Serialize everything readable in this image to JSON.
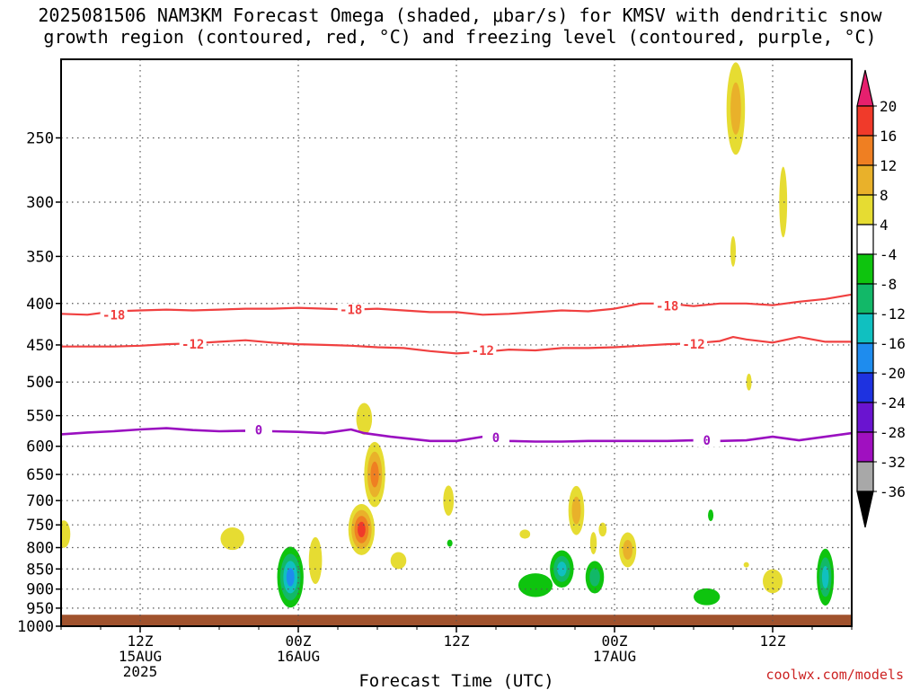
{
  "chart_data": {
    "type": "heatmap",
    "title_line1": "2025081506 NAM3KM Forecast Omega (shaded, μbar/s) for KMSV with dendritic snow",
    "title_line2": "growth region (contoured, red, °C) and freezing level (contoured, purple, °C)",
    "xlabel": "Forecast Time (UTC)",
    "ylabel": "",
    "y_scale": "log-pressure",
    "ylim": [
      1000,
      200
    ],
    "y_ticks": [
      "250",
      "300",
      "350",
      "400",
      "450",
      "500",
      "550",
      "600",
      "650",
      "700",
      "750",
      "800",
      "850",
      "900",
      "950",
      "1000"
    ],
    "x_range_hours": [
      6,
      66
    ],
    "x_ticks": [
      {
        "hour": 12,
        "lines": [
          "12Z",
          "15AUG",
          "2025"
        ]
      },
      {
        "hour": 24,
        "lines": [
          "00Z",
          "16AUG"
        ]
      },
      {
        "hour": 36,
        "lines": [
          "12Z"
        ]
      },
      {
        "hour": 48,
        "lines": [
          "00Z",
          "17AUG"
        ]
      },
      {
        "hour": 60,
        "lines": [
          "12Z"
        ]
      }
    ],
    "grid": true,
    "ground_level_hpa": 968,
    "colors": {
      "ground": "#a0522d",
      "dgz": "#f04040",
      "freezing": "#9a10c0",
      "grid": "#555555"
    },
    "colorbar": {
      "labels": [
        "20",
        "16",
        "12",
        "8",
        "4",
        "-4",
        "-8",
        "-12",
        "-16",
        "-20",
        "-24",
        "-28",
        "-32",
        "-36"
      ],
      "colors": [
        "#e6206e",
        "#f03a2a",
        "#ef7f22",
        "#e9b12a",
        "#e6dc32",
        "#ffffff",
        "#0ec40e",
        "#12b868",
        "#10c0c0",
        "#1e8cee",
        "#1e32e0",
        "#6a14d0",
        "#a010c0",
        "#a8a8a8",
        "#000000"
      ]
    },
    "contours": [
      {
        "name": "-18",
        "color": "dgz",
        "points": [
          [
            6,
            412
          ],
          [
            8,
            413
          ],
          [
            10,
            409
          ],
          [
            12,
            408
          ],
          [
            14,
            407
          ],
          [
            16,
            408
          ],
          [
            18,
            407
          ],
          [
            20,
            406
          ],
          [
            22,
            406
          ],
          [
            24,
            405
          ],
          [
            26,
            406
          ],
          [
            28,
            407
          ],
          [
            30,
            406
          ],
          [
            32,
            408
          ],
          [
            34,
            410
          ],
          [
            36,
            410
          ],
          [
            38,
            413
          ],
          [
            40,
            412
          ],
          [
            42,
            410
          ],
          [
            44,
            408
          ],
          [
            46,
            409
          ],
          [
            48,
            406
          ],
          [
            50,
            400
          ],
          [
            52,
            400
          ],
          [
            54,
            403
          ],
          [
            56,
            400
          ],
          [
            58,
            400
          ],
          [
            60,
            402
          ],
          [
            62,
            398
          ],
          [
            64,
            395
          ],
          [
            66,
            390
          ]
        ],
        "labels": [
          [
            10,
            413
          ],
          [
            28,
            407
          ],
          [
            52,
            403
          ]
        ]
      },
      {
        "name": "-12",
        "color": "dgz",
        "points": [
          [
            6,
            452
          ],
          [
            8,
            452
          ],
          [
            10,
            452
          ],
          [
            12,
            451
          ],
          [
            14,
            449
          ],
          [
            16,
            448
          ],
          [
            18,
            446
          ],
          [
            20,
            444
          ],
          [
            22,
            447
          ],
          [
            24,
            449
          ],
          [
            26,
            450
          ],
          [
            28,
            451
          ],
          [
            30,
            453
          ],
          [
            32,
            454
          ],
          [
            34,
            458
          ],
          [
            36,
            461
          ],
          [
            38,
            459
          ],
          [
            40,
            456
          ],
          [
            42,
            457
          ],
          [
            44,
            454
          ],
          [
            46,
            454
          ],
          [
            48,
            453
          ],
          [
            50,
            451
          ],
          [
            52,
            449
          ],
          [
            54,
            448
          ],
          [
            56,
            445
          ],
          [
            57,
            440
          ],
          [
            58,
            443
          ],
          [
            60,
            447
          ],
          [
            62,
            440
          ],
          [
            64,
            446
          ],
          [
            66,
            446
          ]
        ],
        "labels": [
          [
            16,
            449
          ],
          [
            38,
            457
          ],
          [
            54,
            449
          ]
        ]
      },
      {
        "name": "0",
        "color": "freezing",
        "points": [
          [
            6,
            580
          ],
          [
            8,
            577
          ],
          [
            10,
            575
          ],
          [
            12,
            572
          ],
          [
            14,
            570
          ],
          [
            16,
            573
          ],
          [
            18,
            575
          ],
          [
            20,
            574
          ],
          [
            22,
            575
          ],
          [
            24,
            576
          ],
          [
            26,
            578
          ],
          [
            28,
            572
          ],
          [
            29,
            578
          ],
          [
            31,
            584
          ],
          [
            34,
            591
          ],
          [
            36,
            591
          ],
          [
            38,
            584
          ],
          [
            40,
            591
          ],
          [
            42,
            592
          ],
          [
            44,
            592
          ],
          [
            46,
            591
          ],
          [
            48,
            591
          ],
          [
            50,
            591
          ],
          [
            52,
            591
          ],
          [
            54,
            590
          ],
          [
            56,
            591
          ],
          [
            58,
            590
          ],
          [
            60,
            584
          ],
          [
            62,
            590
          ],
          [
            64,
            584
          ],
          [
            66,
            578
          ]
        ],
        "labels": [
          [
            21,
            573
          ],
          [
            39,
            585
          ],
          [
            55,
            590
          ]
        ]
      }
    ],
    "omega_cells": [
      {
        "hour": 57.2,
        "p": 230,
        "rh": 0.7,
        "rp": 30,
        "values": [
          4,
          8
        ]
      },
      {
        "hour": 60.8,
        "p": 300,
        "rh": 0.3,
        "rp": 30,
        "values": [
          4
        ]
      },
      {
        "hour": 57.0,
        "p": 345,
        "rh": 0.2,
        "rp": 15,
        "values": [
          4
        ]
      },
      {
        "hour": 58.2,
        "p": 500,
        "rh": 0.15,
        "rp": 12,
        "values": [
          4
        ]
      },
      {
        "hour": 29.0,
        "p": 555,
        "rh": 0.6,
        "rp": 25,
        "values": [
          4
        ]
      },
      {
        "hour": 29.8,
        "p": 650,
        "rh": 0.8,
        "rp": 60,
        "values": [
          4,
          8,
          12
        ]
      },
      {
        "hour": 28.8,
        "p": 760,
        "rh": 1.0,
        "rp": 55,
        "values": [
          4,
          8,
          12,
          16
        ]
      },
      {
        "hour": 25.3,
        "p": 830,
        "rh": 0.5,
        "rp": 55,
        "values": [
          4
        ]
      },
      {
        "hour": 35.4,
        "p": 700,
        "rh": 0.4,
        "rp": 30,
        "values": [
          4
        ]
      },
      {
        "hour": 6.2,
        "p": 770,
        "rh": 0.5,
        "rp": 30,
        "values": [
          4
        ]
      },
      {
        "hour": 19.0,
        "p": 780,
        "rh": 0.9,
        "rp": 25,
        "values": [
          4
        ]
      },
      {
        "hour": 31.6,
        "p": 830,
        "rh": 0.6,
        "rp": 20,
        "values": [
          4
        ]
      },
      {
        "hour": 45.1,
        "p": 720,
        "rh": 0.6,
        "rp": 50,
        "values": [
          4,
          8
        ]
      },
      {
        "hour": 46.4,
        "p": 790,
        "rh": 0.25,
        "rp": 25,
        "values": [
          4
        ]
      },
      {
        "hour": 47.1,
        "p": 760,
        "rh": 0.3,
        "rp": 15,
        "values": [
          4
        ]
      },
      {
        "hour": 41.2,
        "p": 770,
        "rh": 0.4,
        "rp": 10,
        "values": [
          4
        ]
      },
      {
        "hour": 49.0,
        "p": 805,
        "rh": 0.65,
        "rp": 40,
        "values": [
          4,
          8
        ]
      },
      {
        "hour": 60.0,
        "p": 880,
        "rh": 0.75,
        "rp": 30,
        "values": [
          4
        ]
      },
      {
        "hour": 58.0,
        "p": 840,
        "rh": 0.12,
        "rp": 6,
        "values": [
          4
        ]
      },
      {
        "hour": 23.4,
        "p": 870,
        "rh": 1.0,
        "rp": 75,
        "values": [
          -4,
          -8,
          -12,
          -16
        ]
      },
      {
        "hour": 42.0,
        "p": 890,
        "rh": 1.3,
        "rp": 30,
        "values": [
          -4
        ]
      },
      {
        "hour": 44.0,
        "p": 850,
        "rh": 0.9,
        "rp": 45,
        "values": [
          -4,
          -8,
          -12
        ]
      },
      {
        "hour": 46.5,
        "p": 870,
        "rh": 0.7,
        "rp": 40,
        "values": [
          -4,
          -8
        ]
      },
      {
        "hour": 55.0,
        "p": 920,
        "rh": 1.0,
        "rp": 22,
        "values": [
          -4
        ]
      },
      {
        "hour": 55.3,
        "p": 730,
        "rh": 0.2,
        "rp": 12,
        "values": [
          -4
        ]
      },
      {
        "hour": 35.5,
        "p": 790,
        "rh": 0.12,
        "rp": 8,
        "values": [
          -4
        ]
      },
      {
        "hour": 64.0,
        "p": 870,
        "rh": 0.65,
        "rp": 70,
        "values": [
          -4,
          -8,
          -12
        ]
      }
    ]
  },
  "footer": {
    "credit": "coolwx.com/models"
  }
}
